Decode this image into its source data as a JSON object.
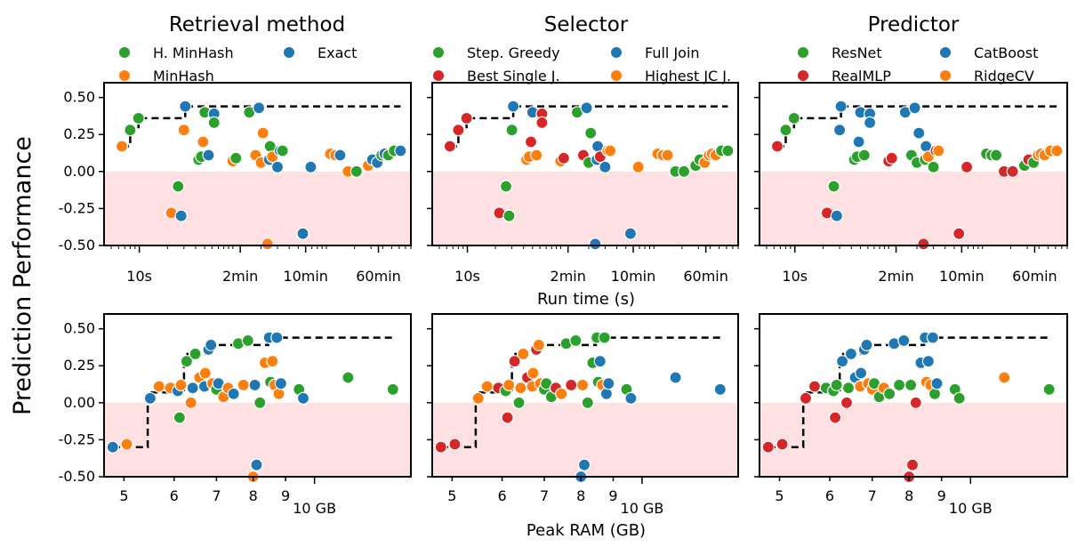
{
  "figure": {
    "ylabel": "Prediction Performance",
    "xlabel_top": "Run time (s)",
    "xlabel_bottom": "Peak RAM (GB)"
  },
  "colors": {
    "green": "#2ca02c",
    "blue": "#1f77b4",
    "orange": "#ff7f0e",
    "red": "#d62728",
    "negative_band": "#ffe0e3",
    "frontier": "#000000"
  },
  "columns": [
    {
      "title": "Retrieval method",
      "legend": [
        {
          "label": "H. MinHash",
          "color": "green"
        },
        {
          "label": "Exact",
          "color": "blue"
        },
        {
          "label": "MinHash",
          "color": "orange"
        }
      ]
    },
    {
      "title": "Selector",
      "legend": [
        {
          "label": "Step. Greedy",
          "color": "green"
        },
        {
          "label": "Full Join",
          "color": "blue"
        },
        {
          "label": "Best Single J.",
          "color": "red"
        },
        {
          "label": "Highest JC J.",
          "color": "orange"
        }
      ]
    },
    {
      "title": "Predictor",
      "legend": [
        {
          "label": "ResNet",
          "color": "green"
        },
        {
          "label": "CatBoost",
          "color": "blue"
        },
        {
          "label": "RealMLP",
          "color": "red"
        },
        {
          "label": "RidgeCV",
          "color": "orange"
        }
      ]
    }
  ],
  "axes": {
    "y_ticks": [
      "0.50",
      "0.25",
      "0.00",
      "-0.25",
      "-0.50"
    ],
    "y_tick_values": [
      0.5,
      0.25,
      0,
      -0.25,
      -0.5
    ],
    "ylim": [
      -0.5,
      0.6
    ],
    "time_ticks": [
      {
        "label": "10s",
        "value": 10
      },
      {
        "label": "2min",
        "value": 120
      },
      {
        "label": "10min",
        "value": 600
      },
      {
        "label": "60min",
        "value": 3600
      }
    ],
    "time_xlim": [
      4.2,
      8000
    ],
    "time_scale": "log",
    "ram_ticks": [
      {
        "label": "5",
        "value": 5
      },
      {
        "label": "6",
        "value": 6
      },
      {
        "label": "7",
        "value": 7
      },
      {
        "label": "8",
        "value": 8
      },
      {
        "label": "9",
        "value": 9
      },
      {
        "label": "10 GB",
        "value": 10
      }
    ],
    "ram_xlim": [
      4.65,
      14.2
    ],
    "ram_scale": "log"
  },
  "chart_data": [
    {
      "type": "scatter",
      "xscale": "log",
      "xlabel": "Run time (s)",
      "ylabel": "Prediction Performance",
      "points": [
        {
          "x": 6.5,
          "y": 0.17,
          "g": [
            2,
            2,
            2
          ]
        },
        {
          "x": 8,
          "y": 0.28,
          "g": [
            0,
            2,
            0
          ]
        },
        {
          "x": 9.8,
          "y": 0.36,
          "g": [
            0,
            2,
            0
          ]
        },
        {
          "x": 22,
          "y": -0.28,
          "g": [
            2,
            2,
            2
          ]
        },
        {
          "x": 26,
          "y": -0.1,
          "g": [
            0,
            0,
            0
          ]
        },
        {
          "x": 28,
          "y": -0.3,
          "g": [
            1,
            0,
            1
          ]
        },
        {
          "x": 30,
          "y": 0.28,
          "g": [
            2,
            0,
            1
          ]
        },
        {
          "x": 31,
          "y": 0.44,
          "g": [
            1,
            1,
            1
          ]
        },
        {
          "x": 43,
          "y": 0.08,
          "g": [
            0,
            3,
            0
          ]
        },
        {
          "x": 46,
          "y": 0.1,
          "g": [
            0,
            3,
            0
          ]
        },
        {
          "x": 48,
          "y": 0.2,
          "g": [
            2,
            2,
            1
          ]
        },
        {
          "x": 50,
          "y": 0.4,
          "g": [
            0,
            1,
            1
          ]
        },
        {
          "x": 55,
          "y": 0.11,
          "g": [
            1,
            3,
            0
          ]
        },
        {
          "x": 63,
          "y": 0.39,
          "g": [
            1,
            2,
            1
          ]
        },
        {
          "x": 63,
          "y": 0.33,
          "g": [
            0,
            2,
            1
          ]
        },
        {
          "x": 100,
          "y": 0.07,
          "g": [
            2,
            3,
            2
          ]
        },
        {
          "x": 108,
          "y": 0.09,
          "g": [
            0,
            2,
            2
          ]
        },
        {
          "x": 150,
          "y": 0.4,
          "g": [
            0,
            0,
            1
          ]
        },
        {
          "x": 175,
          "y": 0.11,
          "g": [
            2,
            2,
            0
          ]
        },
        {
          "x": 190,
          "y": 0.43,
          "g": [
            1,
            1,
            1
          ]
        },
        {
          "x": 200,
          "y": 0.06,
          "g": [
            2,
            0,
            0
          ]
        },
        {
          "x": 210,
          "y": 0.26,
          "g": [
            2,
            0,
            1
          ]
        },
        {
          "x": 235,
          "y": -0.49,
          "g": [
            2,
            1,
            2
          ]
        },
        {
          "x": 245,
          "y": 0.08,
          "g": [
            1,
            1,
            0
          ]
        },
        {
          "x": 250,
          "y": 0.17,
          "g": [
            0,
            1,
            1
          ]
        },
        {
          "x": 265,
          "y": 0.1,
          "g": [
            2,
            2,
            3
          ]
        },
        {
          "x": 300,
          "y": 0.03,
          "g": [
            1,
            1,
            0
          ]
        },
        {
          "x": 320,
          "y": 0.14,
          "g": [
            1,
            3,
            2
          ]
        },
        {
          "x": 340,
          "y": 0.14,
          "g": [
            0,
            3,
            3
          ]
        },
        {
          "x": 560,
          "y": -0.42,
          "g": [
            1,
            1,
            2
          ]
        },
        {
          "x": 680,
          "y": 0.03,
          "g": [
            1,
            3,
            2
          ]
        },
        {
          "x": 1100,
          "y": 0.12,
          "g": [
            2,
            3,
            0
          ]
        },
        {
          "x": 1250,
          "y": 0.11,
          "g": [
            2,
            3,
            0
          ]
        },
        {
          "x": 1400,
          "y": 0.11,
          "g": [
            1,
            3,
            0
          ]
        },
        {
          "x": 1700,
          "y": 0.0,
          "g": [
            2,
            0,
            2
          ]
        },
        {
          "x": 2100,
          "y": 0.0,
          "g": [
            0,
            0,
            2
          ]
        },
        {
          "x": 2800,
          "y": 0.04,
          "g": [
            2,
            0,
            0
          ]
        },
        {
          "x": 3100,
          "y": 0.08,
          "g": [
            1,
            0,
            2
          ]
        },
        {
          "x": 3500,
          "y": 0.06,
          "g": [
            1,
            3,
            0
          ]
        },
        {
          "x": 3900,
          "y": 0.11,
          "g": [
            0,
            3,
            3
          ]
        },
        {
          "x": 4200,
          "y": 0.12,
          "g": [
            1,
            3,
            3
          ]
        },
        {
          "x": 4600,
          "y": 0.11,
          "g": [
            0,
            3,
            3
          ]
        },
        {
          "x": 5300,
          "y": 0.14,
          "g": [
            0,
            0,
            3
          ]
        },
        {
          "x": 6200,
          "y": 0.14,
          "g": [
            1,
            0,
            3
          ]
        }
      ],
      "frontier": [
        [
          6.5,
          0.17
        ],
        [
          8,
          0.17
        ],
        [
          8,
          0.28
        ],
        [
          9.8,
          0.28
        ],
        [
          9.8,
          0.36
        ],
        [
          31,
          0.36
        ],
        [
          31,
          0.44
        ],
        [
          6200,
          0.44
        ]
      ]
    },
    {
      "type": "scatter",
      "xscale": "log",
      "xlabel": "Peak RAM (GB)",
      "ylabel": "Prediction Performance",
      "points": [
        {
          "x": 4.8,
          "y": -0.3,
          "g": [
            1,
            2,
            2
          ]
        },
        {
          "x": 5.05,
          "y": -0.28,
          "g": [
            2,
            2,
            2
          ]
        },
        {
          "x": 5.5,
          "y": 0.03,
          "g": [
            1,
            3,
            2
          ]
        },
        {
          "x": 5.68,
          "y": 0.11,
          "g": [
            2,
            3,
            2
          ]
        },
        {
          "x": 5.92,
          "y": 0.1,
          "g": [
            2,
            2,
            0
          ]
        },
        {
          "x": 6.08,
          "y": 0.08,
          "g": [
            1,
            0,
            0
          ]
        },
        {
          "x": 6.12,
          "y": -0.1,
          "g": [
            0,
            2,
            2
          ]
        },
        {
          "x": 6.15,
          "y": 0.12,
          "g": [
            2,
            3,
            0
          ]
        },
        {
          "x": 6.28,
          "y": 0.28,
          "g": [
            0,
            2,
            1
          ]
        },
        {
          "x": 6.38,
          "y": 0.0,
          "g": [
            2,
            0,
            2
          ]
        },
        {
          "x": 6.42,
          "y": 0.1,
          "g": [
            1,
            3,
            0
          ]
        },
        {
          "x": 6.48,
          "y": 0.33,
          "g": [
            0,
            3,
            1
          ]
        },
        {
          "x": 6.58,
          "y": 0.17,
          "g": [
            2,
            2,
            1
          ]
        },
        {
          "x": 6.7,
          "y": 0.11,
          "g": [
            1,
            3,
            3
          ]
        },
        {
          "x": 6.72,
          "y": 0.2,
          "g": [
            2,
            3,
            1
          ]
        },
        {
          "x": 6.8,
          "y": 0.36,
          "g": [
            1,
            2,
            1
          ]
        },
        {
          "x": 6.86,
          "y": 0.39,
          "g": [
            1,
            3,
            1
          ]
        },
        {
          "x": 6.9,
          "y": 0.13,
          "g": [
            2,
            3,
            3
          ]
        },
        {
          "x": 7.0,
          "y": 0.09,
          "g": [
            0,
            0,
            3
          ]
        },
        {
          "x": 7.05,
          "y": 0.13,
          "g": [
            1,
            0,
            0
          ]
        },
        {
          "x": 7.18,
          "y": 0.04,
          "g": [
            2,
            0,
            0
          ]
        },
        {
          "x": 7.3,
          "y": 0.1,
          "g": [
            2,
            2,
            3
          ]
        },
        {
          "x": 7.45,
          "y": 0.06,
          "g": [
            1,
            3,
            0
          ]
        },
        {
          "x": 7.58,
          "y": 0.4,
          "g": [
            0,
            0,
            1
          ]
        },
        {
          "x": 7.72,
          "y": 0.12,
          "g": [
            2,
            2,
            0
          ]
        },
        {
          "x": 7.85,
          "y": 0.42,
          "g": [
            0,
            0,
            1
          ]
        },
        {
          "x": 8.0,
          "y": -0.5,
          "g": [
            2,
            1,
            2
          ]
        },
        {
          "x": 8.05,
          "y": 0.12,
          "g": [
            1,
            3,
            0
          ]
        },
        {
          "x": 8.1,
          "y": -0.42,
          "g": [
            1,
            1,
            2
          ]
        },
        {
          "x": 8.2,
          "y": 0.0,
          "g": [
            0,
            0,
            2
          ]
        },
        {
          "x": 8.35,
          "y": 0.27,
          "g": [
            2,
            0,
            1
          ]
        },
        {
          "x": 8.48,
          "y": 0.44,
          "g": [
            1,
            0,
            1
          ]
        },
        {
          "x": 8.58,
          "y": 0.28,
          "g": [
            2,
            1,
            1
          ]
        },
        {
          "x": 8.52,
          "y": 0.14,
          "g": [
            0,
            0,
            3
          ]
        },
        {
          "x": 8.65,
          "y": 0.12,
          "g": [
            2,
            3,
            3
          ]
        },
        {
          "x": 8.72,
          "y": 0.44,
          "g": [
            1,
            0,
            1
          ]
        },
        {
          "x": 8.78,
          "y": 0.06,
          "g": [
            2,
            1,
            0
          ]
        },
        {
          "x": 8.85,
          "y": 0.13,
          "g": [
            1,
            1,
            1
          ]
        },
        {
          "x": 9.45,
          "y": 0.09,
          "g": [
            0,
            0,
            0
          ]
        },
        {
          "x": 9.6,
          "y": 0.03,
          "g": [
            1,
            1,
            0
          ]
        },
        {
          "x": 11.3,
          "y": 0.17,
          "g": [
            0,
            1,
            3
          ]
        },
        {
          "x": 13.3,
          "y": 0.09,
          "g": [
            0,
            1,
            0
          ]
        }
      ],
      "frontier": [
        [
          4.8,
          -0.3
        ],
        [
          5.45,
          -0.3
        ],
        [
          5.45,
          0.07
        ],
        [
          6.22,
          0.07
        ],
        [
          6.22,
          0.28
        ],
        [
          6.3,
          0.28
        ],
        [
          6.3,
          0.33
        ],
        [
          6.82,
          0.33
        ],
        [
          6.82,
          0.39
        ],
        [
          8.45,
          0.39
        ],
        [
          8.45,
          0.44
        ],
        [
          13.3,
          0.44
        ]
      ]
    }
  ]
}
